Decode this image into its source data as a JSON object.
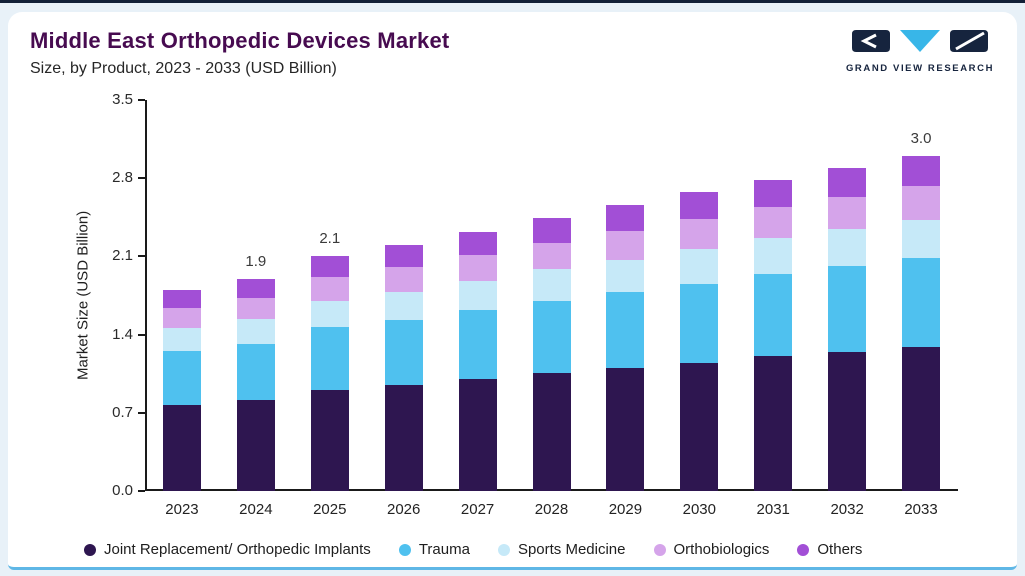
{
  "header": {
    "title": "Middle East Orthopedic Devices Market",
    "subtitle": "Size, by Product, 2023 - 2033 (USD Billion)",
    "logo_text": "GRAND VIEW RESEARCH"
  },
  "colors": {
    "title": "#470b50",
    "accent_navy": "#16243e",
    "accent_cyan": "#38b6e8",
    "page_background": "#e8f1f8",
    "card_bottom_border": "#5fb7e6"
  },
  "chart_data": {
    "type": "bar",
    "stacked": true,
    "title": "Middle East Orthopedic Devices Market Size, by Product, 2023 - 2033 (USD Billion)",
    "ylabel": "Market Size (USD Billion)",
    "ylim": [
      0,
      3.5
    ],
    "yticks": [
      0.0,
      0.7,
      1.4,
      2.1,
      2.8,
      3.5
    ],
    "grid": false,
    "legend_position": "bottom",
    "categories": [
      "2023",
      "2024",
      "2025",
      "2026",
      "2027",
      "2028",
      "2029",
      "2030",
      "2031",
      "2032",
      "2033"
    ],
    "totals": [
      1.8,
      1.9,
      2.1,
      2.2,
      2.32,
      2.44,
      2.56,
      2.68,
      2.78,
      2.89,
      3.0
    ],
    "total_labels": {
      "2024": "1.9",
      "2025": "2.1",
      "2033": "3.0"
    },
    "series": [
      {
        "key": "joint_replacement",
        "name": "Joint Replacement/ Orthopedic Implants",
        "color": "#2e1650",
        "values": [
          0.77,
          0.82,
          0.9,
          0.95,
          1.0,
          1.05,
          1.1,
          1.15,
          1.2,
          1.24,
          1.29
        ]
      },
      {
        "key": "trauma",
        "name": "Trauma",
        "color": "#4fc1ef",
        "values": [
          0.48,
          0.5,
          0.56,
          0.58,
          0.62,
          0.65,
          0.68,
          0.71,
          0.74,
          0.77,
          0.8
        ]
      },
      {
        "key": "sports_medicine",
        "name": "Sports Medicine",
        "color": "#c6e9f8",
        "values": [
          0.21,
          0.22,
          0.24,
          0.25,
          0.26,
          0.28,
          0.29,
          0.31,
          0.32,
          0.33,
          0.34
        ]
      },
      {
        "key": "orthobiologics",
        "name": "Orthobiologics",
        "color": "#d5a4ea",
        "values": [
          0.18,
          0.19,
          0.21,
          0.22,
          0.23,
          0.24,
          0.26,
          0.27,
          0.28,
          0.29,
          0.3
        ]
      },
      {
        "key": "others",
        "name": "Others",
        "color": "#a24fd6",
        "values": [
          0.16,
          0.17,
          0.19,
          0.2,
          0.21,
          0.22,
          0.23,
          0.24,
          0.24,
          0.26,
          0.27
        ]
      }
    ]
  }
}
